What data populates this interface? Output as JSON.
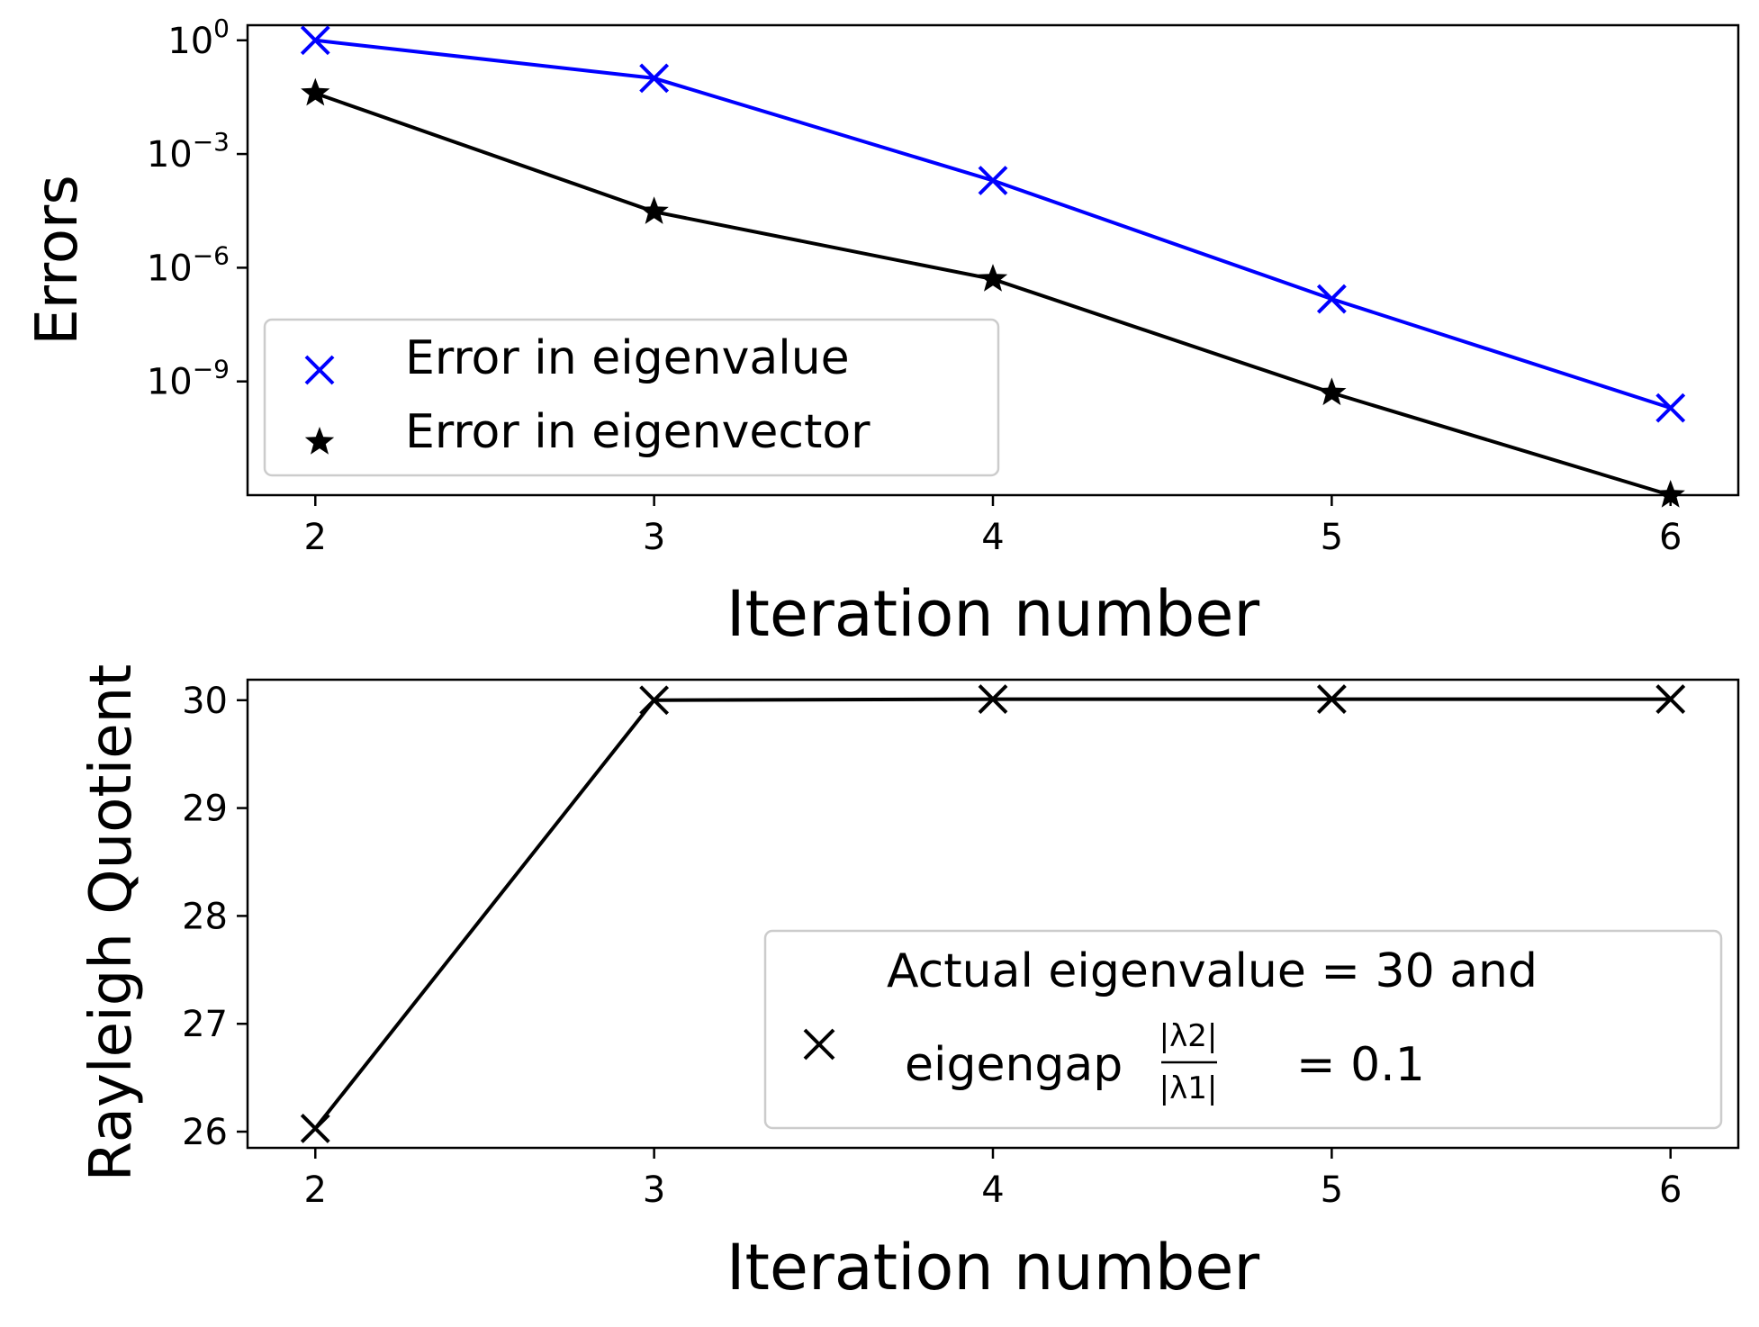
{
  "chart_data": [
    {
      "type": "line",
      "yscale": "log",
      "x": [
        2,
        3,
        4,
        5,
        6
      ],
      "series": [
        {
          "name": "Error in eigenvalue",
          "color": "#0000ff",
          "marker": "x",
          "values": [
            1.0,
            0.1,
            0.0002,
            1.5e-07,
            2e-10
          ]
        },
        {
          "name": "Error in eigenvector",
          "color": "#000000",
          "marker": "star",
          "values": [
            0.04,
            3e-05,
            5e-07,
            5e-10,
            1e-12
          ]
        }
      ],
      "xlabel": "Iteration number",
      "ylabel": "Errors",
      "xticks": [
        "2",
        "3",
        "4",
        "5",
        "6"
      ],
      "yticks": [
        {
          "base": "10",
          "exp": "0",
          "value": 1
        },
        {
          "base": "10",
          "exp": "−3",
          "value": 0.001
        },
        {
          "base": "10",
          "exp": "−6",
          "value": 1e-06
        },
        {
          "base": "10",
          "exp": "−9",
          "value": 1e-09
        }
      ],
      "xlim": [
        1.8,
        6.2
      ],
      "ylim": [
        1e-12,
        2.5
      ],
      "legend_position": "lower-left"
    },
    {
      "type": "line",
      "x": [
        2,
        3,
        4,
        5,
        6
      ],
      "series": [
        {
          "name": "Actual eigenvalue = 30 and eigengap |λ2|/|λ1| = 0.1",
          "color": "#000000",
          "marker": "x",
          "values": [
            26.03,
            30.0,
            30.01,
            30.01,
            30.01
          ]
        }
      ],
      "xlabel": "Iteration number",
      "ylabel": "Rayleigh Quotient",
      "xticks": [
        "2",
        "3",
        "4",
        "5",
        "6"
      ],
      "yticks": [
        "26",
        "27",
        "28",
        "29",
        "30"
      ],
      "xlim": [
        1.8,
        6.2
      ],
      "ylim": [
        25.85,
        30.19
      ],
      "legend_position": "lower-right",
      "legend_text": {
        "line1": "Actual eigenvalue = 30  and",
        "line2a": "eigengap",
        "frac_num": "|λ2|",
        "frac_den": "|λ1|",
        "line2b": "= 0.1"
      }
    }
  ]
}
